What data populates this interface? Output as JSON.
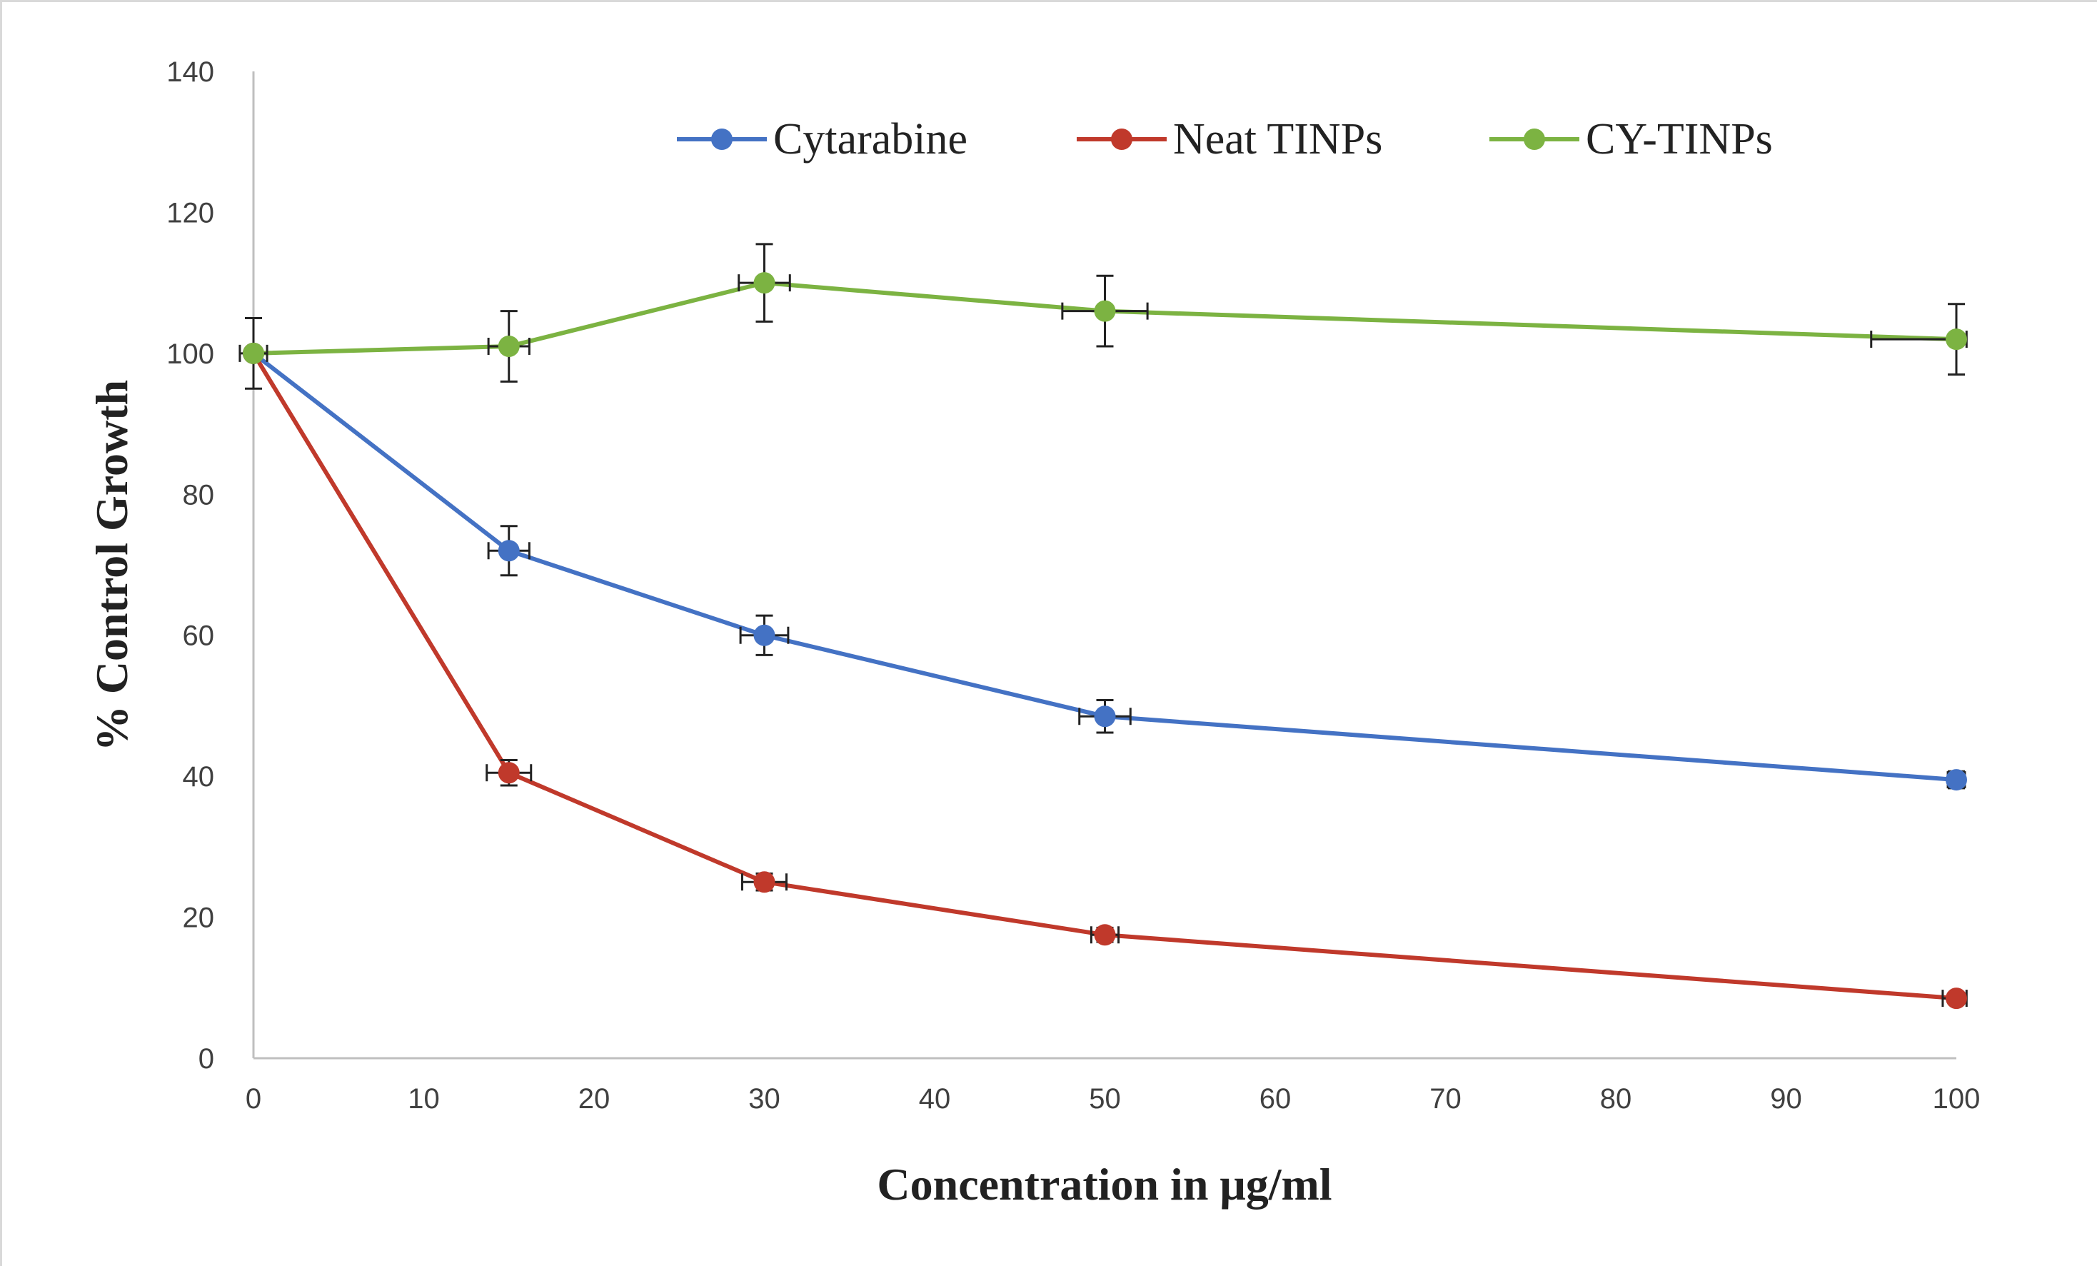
{
  "chart_data": {
    "type": "line",
    "title": "",
    "xlabel": "Concentration  in μg/ml",
    "ylabel": "% Control  Growth",
    "xlim": [
      0,
      100
    ],
    "ylim": [
      0,
      140
    ],
    "x_ticks": [
      0,
      10,
      20,
      30,
      40,
      50,
      60,
      70,
      80,
      90,
      100
    ],
    "y_ticks": [
      0,
      20,
      40,
      60,
      80,
      100,
      120,
      140
    ],
    "grid": false,
    "legend_position": "top-right",
    "x": [
      0,
      15,
      30,
      50,
      100
    ],
    "series": [
      {
        "name": "Cytarabine",
        "color": "#4472c4",
        "values": [
          100,
          72,
          60,
          48.5,
          39.5
        ],
        "y_error": [
          0,
          3.5,
          2.8,
          2.3,
          1.2
        ],
        "x_error": [
          0,
          1.2,
          1.4,
          1.5,
          0.5
        ]
      },
      {
        "name": "Neat TINPs",
        "color": "#c0392b",
        "values": [
          100,
          40.5,
          25,
          17.5,
          8.5
        ],
        "y_error": [
          0,
          1.8,
          1.2,
          1.0,
          0.7
        ],
        "x_error": [
          0,
          1.3,
          1.3,
          0.8,
          0.8
        ]
      },
      {
        "name": "CY-TINPs",
        "color": "#7cb342",
        "values": [
          100,
          101,
          110,
          106,
          102
        ],
        "y_error": [
          5,
          5,
          5.5,
          5,
          5
        ],
        "x_error": [
          0.8,
          1.2,
          1.5,
          2.5,
          5
        ]
      }
    ]
  }
}
